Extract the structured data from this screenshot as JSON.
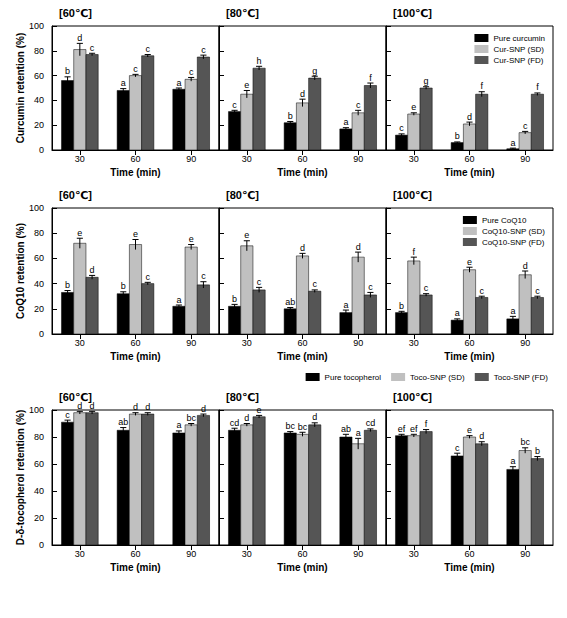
{
  "chart_data": [
    {
      "type": "bar",
      "title": "[60℃]",
      "x_label": "Time (min)",
      "y_label": "Curcumin retention (%)",
      "categories": [
        "30",
        "60",
        "90"
      ],
      "ylim": [
        0,
        100
      ],
      "yticks": [
        0,
        20,
        40,
        60,
        80,
        100
      ],
      "series": [
        {
          "color": "#000000",
          "values": [
            56,
            48,
            49
          ],
          "errors": [
            3,
            1.5,
            1
          ],
          "letters": [
            "b",
            "a",
            "a"
          ]
        },
        {
          "color": "#c0c0c0",
          "values": [
            81,
            60,
            57
          ],
          "errors": [
            5,
            1,
            1.5
          ],
          "letters": [
            "d",
            "c",
            "c"
          ]
        },
        {
          "color": "#555555",
          "values": [
            77,
            76,
            75
          ],
          "errors": [
            1,
            1,
            1.5
          ],
          "letters": [
            "c",
            "c",
            "c"
          ]
        }
      ]
    },
    {
      "type": "bar",
      "title": "[80℃]",
      "x_label": "Time (min)",
      "categories": [
        "30",
        "60",
        "90"
      ],
      "ylim": [
        0,
        100
      ],
      "yticks": [
        0,
        20,
        40,
        60,
        80,
        100
      ],
      "tick_labels": "x",
      "series": [
        {
          "color": "#000000",
          "values": [
            31,
            22,
            17
          ],
          "errors": [
            1,
            1,
            1
          ],
          "letters": [
            "c",
            "b",
            "a"
          ]
        },
        {
          "color": "#c0c0c0",
          "values": [
            45,
            38,
            30
          ],
          "errors": [
            3,
            3,
            2
          ],
          "letters": [
            "e",
            "d",
            "c"
          ]
        },
        {
          "color": "#555555",
          "values": [
            66,
            58,
            52
          ],
          "errors": [
            1.5,
            1.5,
            2
          ],
          "letters": [
            "h",
            "g",
            "f"
          ]
        }
      ]
    },
    {
      "type": "bar",
      "title": "[100℃]",
      "x_label": "Time (min)",
      "categories": [
        "30",
        "60",
        "90"
      ],
      "ylim": [
        0,
        100
      ],
      "yticks": [
        0,
        20,
        40,
        60,
        80,
        100
      ],
      "tick_labels": "x",
      "legend": "upper right",
      "series": [
        {
          "name": "Pure curcumin",
          "color": "#000000",
          "values": [
            12,
            6,
            1
          ],
          "errors": [
            1,
            0.5,
            0.5
          ],
          "letters": [
            "c",
            "b",
            "a"
          ]
        },
        {
          "name": "Cur-SNP (SD)",
          "color": "#c0c0c0",
          "values": [
            29,
            21,
            14
          ],
          "errors": [
            1,
            1.5,
            1
          ],
          "letters": [
            "e",
            "d",
            "c"
          ]
        },
        {
          "name": "Cur-SNP (FD)",
          "color": "#555555",
          "values": [
            50,
            45,
            45
          ],
          "errors": [
            1,
            2,
            1
          ],
          "letters": [
            "g",
            "f",
            "f"
          ]
        }
      ]
    },
    {
      "type": "bar",
      "title": "[60℃]",
      "x_label": "Time (min)",
      "y_label": "CoQ10 retention (%)",
      "categories": [
        "30",
        "60",
        "90"
      ],
      "ylim": [
        0,
        100
      ],
      "yticks": [
        0,
        20,
        40,
        60,
        80,
        100
      ],
      "series": [
        {
          "color": "#000000",
          "values": [
            33,
            32,
            22
          ],
          "errors": [
            1.5,
            1.5,
            1
          ],
          "letters": [
            "b",
            "b",
            "a"
          ]
        },
        {
          "color": "#c0c0c0",
          "values": [
            72,
            71,
            69
          ],
          "errors": [
            4,
            4,
            2
          ],
          "letters": [
            "e",
            "e",
            "e"
          ]
        },
        {
          "color": "#555555",
          "values": [
            45,
            40,
            39
          ],
          "errors": [
            1.5,
            1,
            2.5
          ],
          "letters": [
            "d",
            "c",
            "c"
          ]
        }
      ]
    },
    {
      "type": "bar",
      "title": "[80℃]",
      "x_label": "Time (min)",
      "categories": [
        "30",
        "60",
        "90"
      ],
      "ylim": [
        0,
        100
      ],
      "yticks": [
        0,
        20,
        40,
        60,
        80,
        100
      ],
      "tick_labels": "x",
      "series": [
        {
          "color": "#000000",
          "values": [
            22,
            20,
            17
          ],
          "errors": [
            1.5,
            1,
            2
          ],
          "letters": [
            "b",
            "ab",
            "a"
          ]
        },
        {
          "color": "#c0c0c0",
          "values": [
            70,
            62,
            61
          ],
          "errors": [
            4,
            2,
            4
          ],
          "letters": [
            "e",
            "d",
            "d"
          ]
        },
        {
          "color": "#555555",
          "values": [
            35,
            34,
            31
          ],
          "errors": [
            2,
            1,
            2
          ],
          "letters": [
            "c",
            "c",
            "c"
          ]
        }
      ]
    },
    {
      "type": "bar",
      "title": "[100℃]",
      "x_label": "Time (min)",
      "categories": [
        "30",
        "60",
        "90"
      ],
      "ylim": [
        0,
        100
      ],
      "yticks": [
        0,
        20,
        40,
        60,
        80,
        100
      ],
      "tick_labels": "x",
      "legend": "upper right",
      "series": [
        {
          "name": "Pure CoQ10",
          "color": "#000000",
          "values": [
            17,
            11,
            12
          ],
          "errors": [
            1,
            1,
            2
          ],
          "letters": [
            "b",
            "a",
            "a"
          ]
        },
        {
          "name": "CoQ10-SNP (SD)",
          "color": "#c0c0c0",
          "values": [
            58,
            51,
            47
          ],
          "errors": [
            3,
            2,
            3
          ],
          "letters": [
            "f",
            "e",
            "d"
          ]
        },
        {
          "name": "CoQ10-SNP (FD)",
          "color": "#555555",
          "values": [
            31,
            29,
            29
          ],
          "errors": [
            1,
            1,
            1
          ],
          "letters": [
            "c",
            "c",
            "c"
          ]
        }
      ]
    },
    {
      "type": "bar",
      "title": "[60℃]",
      "x_label": "Time (min)",
      "y_label": "D-δ-tocopherol retention (%)",
      "categories": [
        "30",
        "60",
        "90"
      ],
      "ylim": [
        0,
        100
      ],
      "yticks": [
        0,
        20,
        40,
        60,
        80,
        100
      ],
      "series": [
        {
          "color": "#000000",
          "values": [
            91,
            85,
            83
          ],
          "errors": [
            1.5,
            2,
            1.5
          ],
          "letters": [
            "c",
            "ab",
            "a"
          ]
        },
        {
          "color": "#c0c0c0",
          "values": [
            98,
            97,
            89
          ],
          "errors": [
            1,
            1,
            1
          ],
          "letters": [
            "d",
            "d",
            "bc"
          ]
        },
        {
          "color": "#555555",
          "values": [
            98,
            97,
            96
          ],
          "errors": [
            1,
            1,
            1
          ],
          "letters": [
            "d",
            "d",
            "d"
          ]
        }
      ]
    },
    {
      "type": "bar",
      "title": "[80℃]",
      "x_label": "Time (min)",
      "categories": [
        "30",
        "60",
        "90"
      ],
      "ylim": [
        0,
        100
      ],
      "yticks": [
        0,
        20,
        40,
        60,
        80,
        100
      ],
      "tick_labels": "x",
      "series": [
        {
          "color": "#000000",
          "values": [
            85,
            83,
            80
          ],
          "errors": [
            1.5,
            1,
            2
          ],
          "letters": [
            "cd",
            "bc",
            "ab"
          ]
        },
        {
          "color": "#c0c0c0",
          "values": [
            89,
            82,
            75
          ],
          "errors": [
            1,
            1.5,
            4
          ],
          "letters": [
            "d",
            "bc",
            "a"
          ]
        },
        {
          "color": "#555555",
          "values": [
            95,
            89,
            85
          ],
          "errors": [
            1,
            1.5,
            1
          ],
          "letters": [
            "e",
            "d",
            "cd"
          ]
        }
      ]
    },
    {
      "type": "bar",
      "title": "[100℃]",
      "x_label": "Time (min)",
      "categories": [
        "30",
        "60",
        "90"
      ],
      "ylim": [
        0,
        100
      ],
      "yticks": [
        0,
        20,
        40,
        60,
        80,
        100
      ],
      "tick_labels": "x",
      "legend": "above",
      "series": [
        {
          "name": "Pure tocopherol",
          "color": "#000000",
          "values": [
            81,
            66,
            56
          ],
          "errors": [
            1,
            2,
            2
          ],
          "letters": [
            "ef",
            "c",
            "a"
          ]
        },
        {
          "name": "Toco-SNP (SD)",
          "color": "#c0c0c0",
          "values": [
            81,
            80,
            70
          ],
          "errors": [
            1,
            1,
            2
          ],
          "letters": [
            "ef",
            "e",
            "bc"
          ]
        },
        {
          "name": "Toco-SNP (FD)",
          "color": "#555555",
          "values": [
            84,
            75,
            64
          ],
          "errors": [
            1.5,
            1.5,
            1.5
          ],
          "letters": [
            "f",
            "d",
            "b"
          ]
        }
      ]
    }
  ]
}
